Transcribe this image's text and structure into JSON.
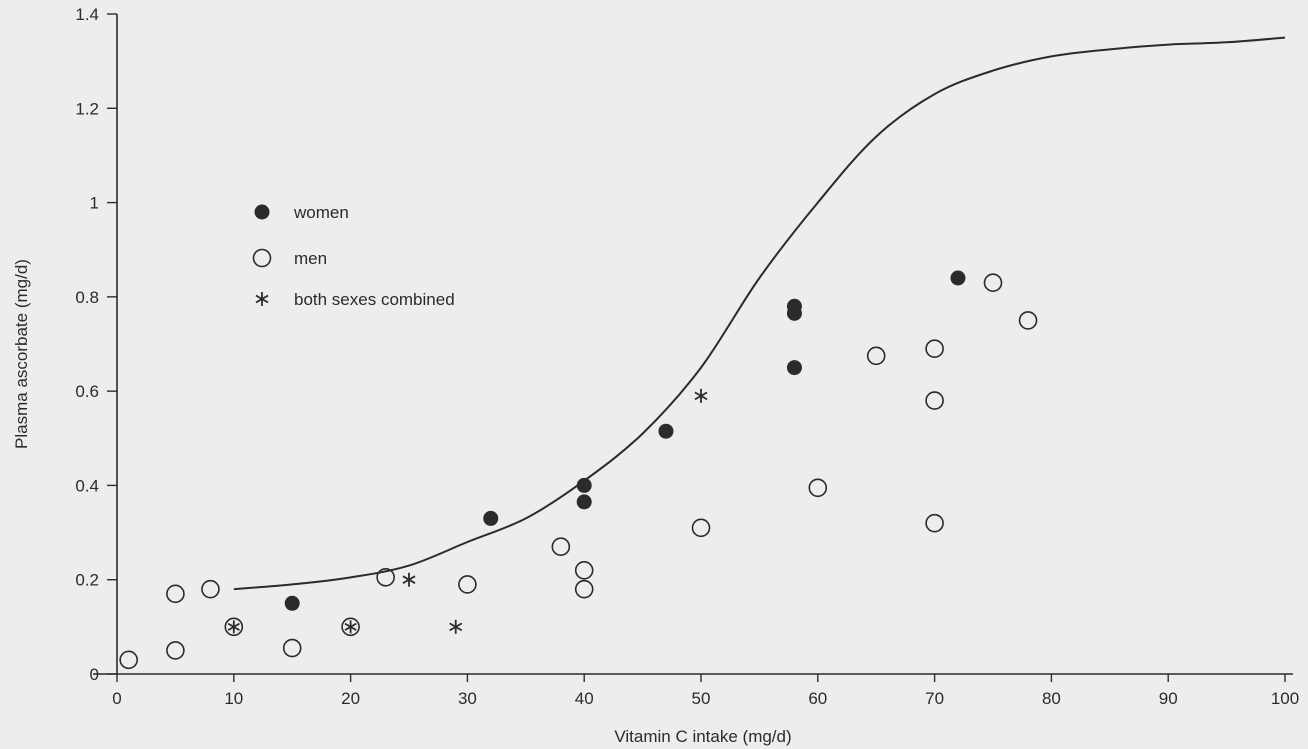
{
  "chart_data": {
    "type": "scatter",
    "title": "",
    "xlabel": "Vitamin C intake (mg/d)",
    "ylabel": "Plasma ascorbate (mg/d)",
    "xlim": [
      0,
      100
    ],
    "ylim": [
      0,
      1.4
    ],
    "x_ticks": [
      0,
      10,
      20,
      30,
      40,
      50,
      60,
      70,
      80,
      90,
      100
    ],
    "y_ticks": [
      0,
      0.2,
      0.4,
      0.6,
      0.8,
      1,
      1.2,
      1.4
    ],
    "y_tick_labels": [
      "0",
      "0.2",
      "0.4",
      "0.6",
      "0.8",
      "1",
      "1.2",
      "1.4"
    ],
    "grid": false,
    "legend_position": "upper-left",
    "ink_color": "#2b2b2b",
    "series": [
      {
        "name": "women",
        "marker": "filled-circle",
        "x": [
          15,
          32,
          40,
          40,
          47,
          58,
          58,
          58,
          72
        ],
        "y": [
          0.15,
          0.33,
          0.4,
          0.365,
          0.515,
          0.78,
          0.765,
          0.65,
          0.84
        ]
      },
      {
        "name": "men",
        "marker": "open-circle",
        "x": [
          1,
          5,
          5,
          8,
          15,
          23,
          30,
          38,
          40,
          40,
          50,
          60,
          65,
          70,
          70,
          70,
          75,
          78
        ],
        "y": [
          0.03,
          0.05,
          0.17,
          0.18,
          0.055,
          0.205,
          0.19,
          0.27,
          0.22,
          0.18,
          0.31,
          0.395,
          0.675,
          0.69,
          0.58,
          0.32,
          0.83,
          0.75
        ]
      },
      {
        "name": "both sexes combined",
        "marker": "asterisk",
        "x": [
          25,
          29,
          50
        ],
        "y": [
          0.2,
          0.1,
          0.59
        ]
      },
      {
        "name": "",
        "marker": "circled-asterisk",
        "x": [
          10,
          20
        ],
        "y": [
          0.1,
          0.1
        ]
      }
    ],
    "fitted_curve": {
      "x": [
        10,
        15,
        20,
        25,
        30,
        35,
        40,
        45,
        50,
        55,
        60,
        65,
        70,
        75,
        80,
        85,
        90,
        95,
        100
      ],
      "y": [
        0.18,
        0.19,
        0.205,
        0.23,
        0.28,
        0.33,
        0.41,
        0.51,
        0.65,
        0.84,
        1.0,
        1.14,
        1.23,
        1.28,
        1.31,
        1.325,
        1.335,
        1.34,
        1.35
      ]
    }
  }
}
